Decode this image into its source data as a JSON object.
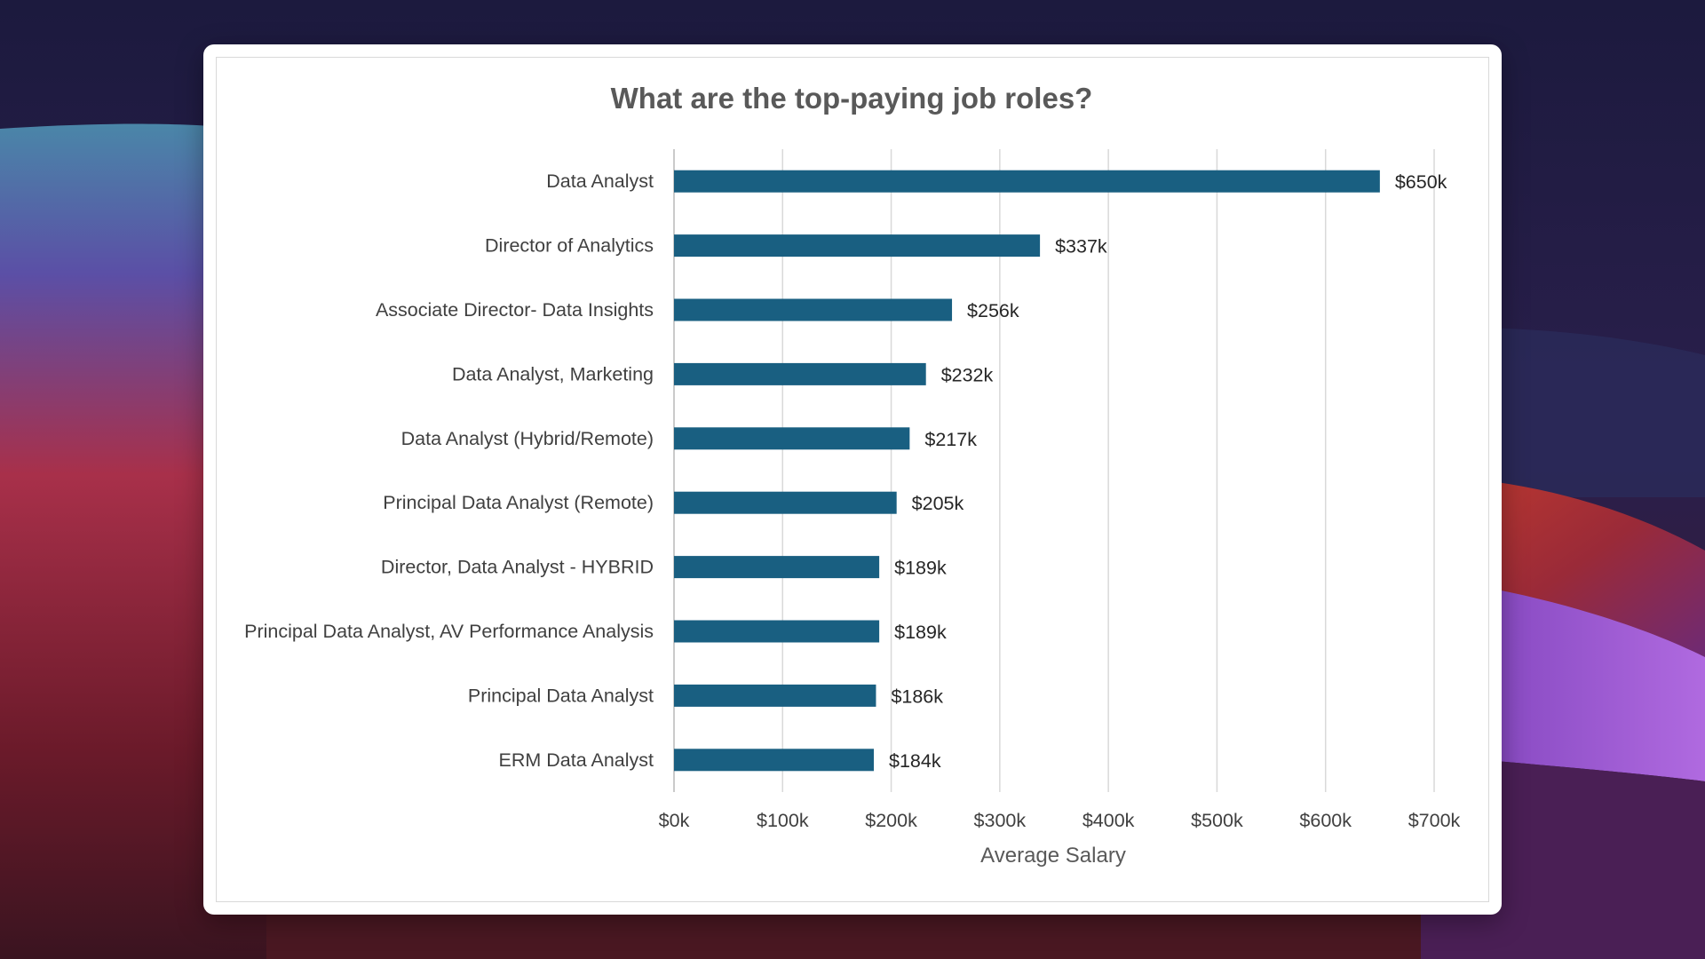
{
  "colors": {
    "bar": "#195F81",
    "gridline": "#d9d9d9",
    "card": "#ffffff"
  },
  "chart_data": {
    "type": "bar",
    "orientation": "horizontal",
    "title": "What are the top-paying job roles?",
    "xlabel": "Average Salary",
    "ylabel": "",
    "categories": [
      "Data Analyst",
      "Director of Analytics",
      "Associate Director- Data Insights",
      "Data Analyst, Marketing",
      "Data Analyst (Hybrid/Remote)",
      "Principal Data Analyst (Remote)",
      "Director, Data Analyst - HYBRID",
      "Principal Data Analyst, AV Performance Analysis",
      "Principal Data Analyst",
      "ERM Data Analyst"
    ],
    "values": [
      650000,
      337000,
      256000,
      232000,
      217000,
      205000,
      189000,
      189000,
      186000,
      184000
    ],
    "data_labels": [
      "$650k",
      "$337k",
      "$256k",
      "$232k",
      "$217k",
      "$205k",
      "$189k",
      "$189k",
      "$186k",
      "$184k"
    ],
    "xlim": [
      0,
      700000
    ],
    "x_ticks": [
      0,
      100000,
      200000,
      300000,
      400000,
      500000,
      600000,
      700000
    ],
    "x_tick_labels": [
      "$0k",
      "$100k",
      "$200k",
      "$300k",
      "$400k",
      "$500k",
      "$600k",
      "$700k"
    ],
    "grid": "vertical",
    "legend": "none"
  }
}
